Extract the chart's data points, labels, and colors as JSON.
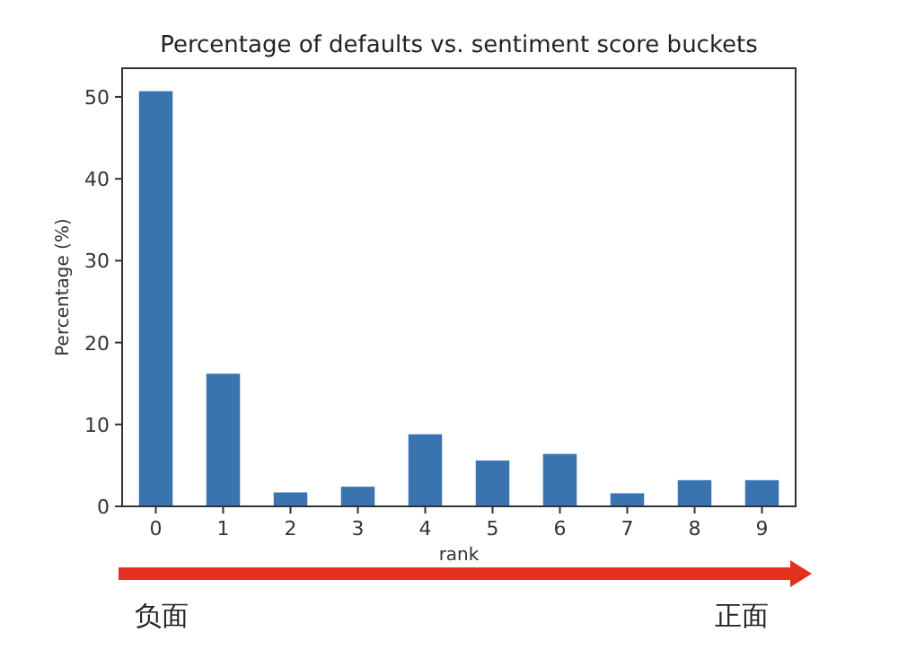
{
  "chart_data": {
    "type": "bar",
    "title": "Percentage of defaults vs. sentiment score buckets",
    "xlabel": "rank",
    "ylabel": "Percentage (%)",
    "categories": [
      "0",
      "1",
      "2",
      "3",
      "4",
      "5",
      "6",
      "7",
      "8",
      "9"
    ],
    "values": [
      50.7,
      16.2,
      1.7,
      2.4,
      8.8,
      5.6,
      6.4,
      1.6,
      3.2,
      3.2
    ],
    "color": "#3a74b0",
    "ylim": [
      0,
      53.5
    ],
    "yticks": [
      0,
      10,
      20,
      30,
      40,
      50
    ],
    "annotations": [
      "负面",
      "正面"
    ]
  }
}
